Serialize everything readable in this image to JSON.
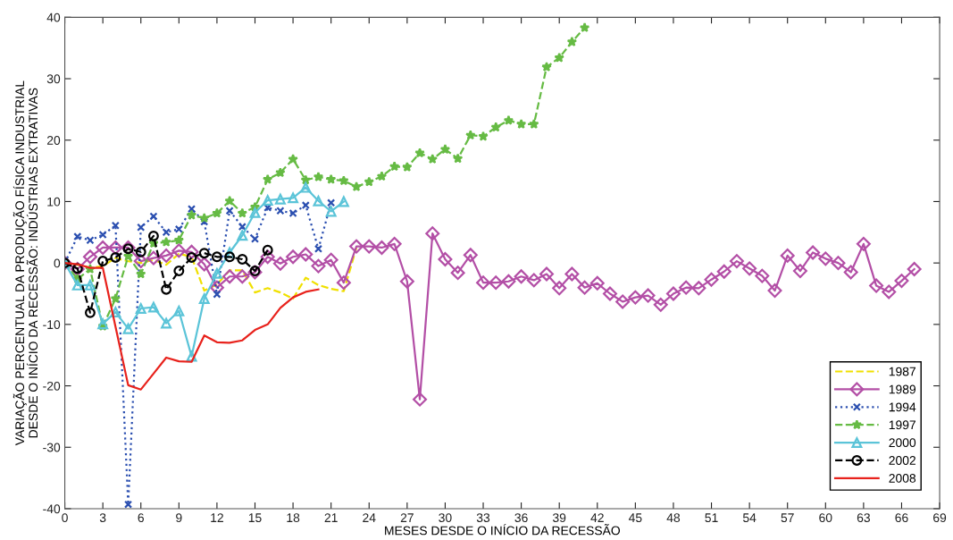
{
  "chart_data": {
    "type": "line",
    "xlabel": "MESES DESDE O INÍCIO DA RECESSÃO",
    "ylabel": "VARIAÇÃO PERCENTUAL DA PRODUÇÃO FÍSICA INDUSTRIAL\nDESDE O INÍCIO DA RECESSÃO: INDÚSTRIAS EXTRATIVAS",
    "xlim": [
      0,
      69
    ],
    "xticks": [
      0,
      3,
      6,
      9,
      12,
      15,
      18,
      21,
      24,
      27,
      30,
      33,
      36,
      39,
      42,
      45,
      48,
      51,
      54,
      57,
      60,
      63,
      66,
      69
    ],
    "ylim": [
      -40,
      40
    ],
    "yticks": [
      -40,
      -30,
      -20,
      -10,
      0,
      10,
      20,
      30,
      40
    ],
    "grid": false,
    "legend": "bottom right",
    "series": [
      {
        "name": "1987",
        "color": "#f0e000",
        "line_style": "dashed",
        "marker": "none",
        "x": [
          0,
          1,
          2,
          3,
          4,
          5,
          6,
          7,
          8,
          9,
          10,
          11,
          12,
          13,
          14,
          15,
          16,
          17,
          18,
          19,
          20,
          21,
          22,
          23
        ],
        "values": [
          0,
          -0.3,
          -0.8,
          -0.5,
          0.8,
          0.3,
          0,
          0.5,
          -0.3,
          1.5,
          1,
          -4.5,
          -3.5,
          -1.2,
          -1.2,
          -4.8,
          -4.1,
          -4.8,
          -5.8,
          -2.4,
          -3.6,
          -4.2,
          -4.6,
          2.5
        ]
      },
      {
        "name": "1989",
        "color": "#b34fa6",
        "line_style": "solid",
        "marker": "diamond",
        "x": [
          0,
          1,
          2,
          3,
          4,
          5,
          6,
          7,
          8,
          9,
          10,
          11,
          12,
          13,
          14,
          15,
          16,
          17,
          18,
          19,
          20,
          21,
          22,
          23,
          24,
          25,
          26,
          27,
          28,
          29,
          30,
          31,
          32,
          33,
          34,
          35,
          36,
          37,
          38,
          39,
          40,
          41,
          42,
          43,
          44,
          45,
          46,
          47,
          48,
          49,
          50,
          51,
          52,
          53,
          54,
          55,
          56,
          57,
          58,
          59,
          60,
          61,
          62,
          63,
          64,
          65,
          66,
          67
        ],
        "values": [
          0,
          -1,
          1,
          2.5,
          2.5,
          2.5,
          0.3,
          0.8,
          1.2,
          2,
          1.8,
          -0.2,
          -4,
          -2.2,
          -2.2,
          -1.5,
          1,
          -0.1,
          1,
          1.4,
          -0.5,
          0.5,
          -3.2,
          2.7,
          2.7,
          2.5,
          3.1,
          -3,
          -22.2,
          4.8,
          0.6,
          -1.6,
          1.3,
          -3.2,
          -3.2,
          -3,
          -2.2,
          -2.8,
          -1.8,
          -4.1,
          -1.8,
          -4,
          -3.3,
          -5,
          -6.3,
          -5.6,
          -5.3,
          -6.8,
          -5,
          -4,
          -4.1,
          -2.7,
          -1.4,
          0.3,
          -0.9,
          -2.1,
          -4.5,
          1.2,
          -1.3,
          1.7,
          0.7,
          0,
          -1.5,
          3.1,
          -3.7,
          -4.7,
          -2.9,
          -1
        ]
      },
      {
        "name": "1994",
        "color": "#2b4fb0",
        "line_style": "dotted",
        "marker": "cross",
        "x": [
          0,
          1,
          2,
          3,
          4,
          5,
          6,
          7,
          8,
          9,
          10,
          11,
          12,
          13,
          14,
          15,
          16,
          17,
          18,
          19,
          20,
          21
        ],
        "values": [
          0,
          4.3,
          3.7,
          4.6,
          6.1,
          -39.3,
          5.8,
          7.6,
          5,
          5.5,
          8.8,
          6.7,
          -5.1,
          8.5,
          5.9,
          3.9,
          9,
          8.5,
          8.1,
          9.4,
          2.3,
          9.8
        ]
      },
      {
        "name": "1997",
        "color": "#66bb44",
        "line_style": "dashed",
        "marker": "star",
        "x": [
          0,
          1,
          2,
          3,
          4,
          5,
          6,
          7,
          8,
          9,
          10,
          11,
          12,
          13,
          14,
          15,
          16,
          17,
          18,
          19,
          20,
          21,
          22,
          23,
          24,
          25,
          26,
          27,
          28,
          29,
          30,
          31,
          32,
          33,
          34,
          35,
          36,
          37,
          38,
          39,
          40,
          41
        ],
        "values": [
          0,
          -2.6,
          -1,
          -10.3,
          -5.8,
          1.1,
          -1.8,
          3.2,
          3.4,
          3.7,
          7.8,
          7.3,
          8.1,
          10.1,
          8.1,
          9.1,
          13.6,
          14.7,
          16.9,
          13.5,
          14,
          13.6,
          13.4,
          12.4,
          13.2,
          14.1,
          15.7,
          15.6,
          17.9,
          16.9,
          18.5,
          17,
          20.8,
          20.6,
          22.1,
          23.2,
          22.6,
          22.6,
          31.9,
          33.4,
          36,
          38.3
        ]
      },
      {
        "name": "2000",
        "color": "#5bc4d8",
        "line_style": "solid",
        "marker": "triangle",
        "x": [
          0,
          1,
          2,
          3,
          4,
          5,
          6,
          7,
          8,
          9,
          10,
          11,
          12,
          13,
          14,
          15,
          16,
          17,
          18,
          19,
          20,
          21,
          22
        ],
        "values": [
          0,
          -3.6,
          -3.6,
          -9.9,
          -8,
          -10.7,
          -7.4,
          -7.2,
          -9.8,
          -7.8,
          -15.2,
          -5.8,
          -1.7,
          1.7,
          4.5,
          8.2,
          10.2,
          10.4,
          10.6,
          12.3,
          10.1,
          8.4,
          10
        ]
      },
      {
        "name": "2002",
        "color": "#000000",
        "line_style": "dashed",
        "marker": "circle",
        "x": [
          0,
          1,
          2,
          3,
          4,
          5,
          6,
          7,
          8,
          9,
          10,
          11,
          12,
          13,
          14,
          15,
          16
        ],
        "values": [
          0,
          -0.9,
          -8.1,
          0.3,
          0.9,
          2.3,
          1.8,
          4.4,
          -4.3,
          -1.3,
          0.9,
          1.6,
          1,
          1,
          0.6,
          -1.3,
          2.1
        ]
      },
      {
        "name": "2008",
        "color": "#e8221c",
        "line_style": "solid",
        "marker": "none",
        "x": [
          0,
          1,
          2,
          3,
          4,
          5,
          6,
          7,
          8,
          9,
          10,
          11,
          12,
          13,
          14,
          15,
          16,
          17,
          18,
          19,
          20
        ],
        "values": [
          0,
          -0.2,
          -0.8,
          -0.8,
          -10.4,
          -19.9,
          -20.6,
          -18,
          -15.4,
          -16,
          -16.1,
          -11.8,
          -12.9,
          -13,
          -12.6,
          -10.9,
          -10,
          -7.3,
          -5.6,
          -4.7,
          -4.3
        ]
      }
    ]
  }
}
